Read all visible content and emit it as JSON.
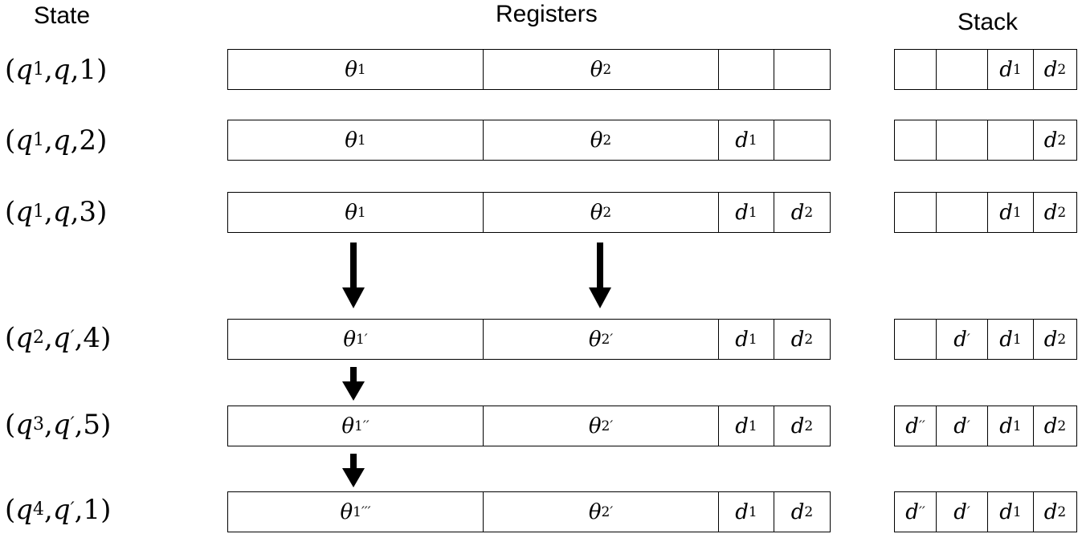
{
  "headers": {
    "state": "State",
    "registers": "Registers",
    "stack": "Stack"
  },
  "rows": [
    {
      "state": [
        "q",
        "1",
        "q",
        "",
        "1"
      ],
      "registers": [
        {
          "base": "θ",
          "sub": "1",
          "sup": ""
        },
        {
          "base": "θ",
          "sub": "2",
          "sup": ""
        },
        {
          "base": "",
          "sub": "",
          "sup": ""
        },
        {
          "base": "",
          "sub": "",
          "sup": ""
        }
      ],
      "stack": [
        {
          "base": "",
          "sub": "",
          "sup": ""
        },
        {
          "base": "",
          "sub": "",
          "sup": ""
        },
        {
          "base": "d",
          "sub": "1",
          "sup": ""
        },
        {
          "base": "d",
          "sub": "2",
          "sup": ""
        }
      ]
    },
    {
      "state": [
        "q",
        "1",
        "q",
        "",
        "2"
      ],
      "registers": [
        {
          "base": "θ",
          "sub": "1",
          "sup": ""
        },
        {
          "base": "θ",
          "sub": "2",
          "sup": ""
        },
        {
          "base": "d",
          "sub": "1",
          "sup": ""
        },
        {
          "base": "",
          "sub": "",
          "sup": ""
        }
      ],
      "stack": [
        {
          "base": "",
          "sub": "",
          "sup": ""
        },
        {
          "base": "",
          "sub": "",
          "sup": ""
        },
        {
          "base": "",
          "sub": "",
          "sup": ""
        },
        {
          "base": "d",
          "sub": "2",
          "sup": ""
        }
      ]
    },
    {
      "state": [
        "q",
        "1",
        "q",
        "",
        "3"
      ],
      "registers": [
        {
          "base": "θ",
          "sub": "1",
          "sup": ""
        },
        {
          "base": "θ",
          "sub": "2",
          "sup": ""
        },
        {
          "base": "d",
          "sub": "1",
          "sup": ""
        },
        {
          "base": "d",
          "sub": "2",
          "sup": ""
        }
      ],
      "stack": [
        {
          "base": "",
          "sub": "",
          "sup": ""
        },
        {
          "base": "",
          "sub": "",
          "sup": ""
        },
        {
          "base": "d",
          "sub": "1",
          "sup": ""
        },
        {
          "base": "d",
          "sub": "2",
          "sup": ""
        }
      ]
    },
    {
      "state": [
        "q",
        "2",
        "q",
        "′",
        "4"
      ],
      "registers": [
        {
          "base": "θ",
          "sub": "1",
          "sup": "′"
        },
        {
          "base": "θ",
          "sub": "2",
          "sup": "′"
        },
        {
          "base": "d",
          "sub": "1",
          "sup": ""
        },
        {
          "base": "d",
          "sub": "2",
          "sup": ""
        }
      ],
      "stack": [
        {
          "base": "",
          "sub": "",
          "sup": ""
        },
        {
          "base": "d",
          "sub": "",
          "sup": "′"
        },
        {
          "base": "d",
          "sub": "1",
          "sup": ""
        },
        {
          "base": "d",
          "sub": "2",
          "sup": ""
        }
      ]
    },
    {
      "state": [
        "q",
        "3",
        "q",
        "′",
        "5"
      ],
      "registers": [
        {
          "base": "θ",
          "sub": "1",
          "sup": "′′"
        },
        {
          "base": "θ",
          "sub": "2",
          "sup": "′"
        },
        {
          "base": "d",
          "sub": "1",
          "sup": ""
        },
        {
          "base": "d",
          "sub": "2",
          "sup": ""
        }
      ],
      "stack": [
        {
          "base": "d",
          "sub": "",
          "sup": "′′"
        },
        {
          "base": "d",
          "sub": "",
          "sup": "′"
        },
        {
          "base": "d",
          "sub": "1",
          "sup": ""
        },
        {
          "base": "d",
          "sub": "2",
          "sup": ""
        }
      ]
    },
    {
      "state": [
        "q",
        "4",
        "q",
        "′",
        "1"
      ],
      "registers": [
        {
          "base": "θ",
          "sub": "1",
          "sup": "′′′"
        },
        {
          "base": "θ",
          "sub": "2",
          "sup": "′"
        },
        {
          "base": "d",
          "sub": "1",
          "sup": ""
        },
        {
          "base": "d",
          "sub": "2",
          "sup": ""
        }
      ],
      "stack": [
        {
          "base": "d",
          "sub": "",
          "sup": "′′"
        },
        {
          "base": "d",
          "sub": "",
          "sup": "′"
        },
        {
          "base": "d",
          "sub": "1",
          "sup": ""
        },
        {
          "base": "d",
          "sub": "2",
          "sup": ""
        }
      ]
    }
  ]
}
